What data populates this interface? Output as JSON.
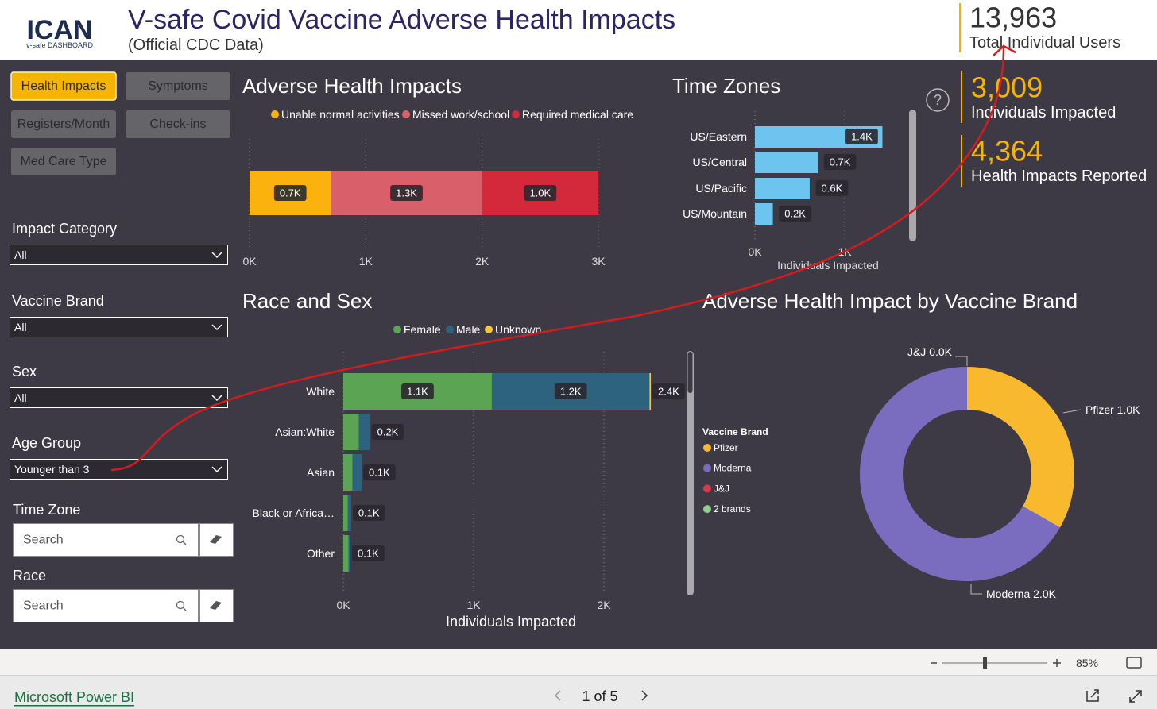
{
  "header": {
    "logo": "ICAN",
    "logo_sub": "v-safe DASHBOARD",
    "title": "V-safe Covid Vaccine Adverse Health Impacts",
    "subtitle": "(Official CDC Data)"
  },
  "kpis": [
    {
      "value": "13,963",
      "label": "Total Individual Users"
    },
    {
      "value": "3,009",
      "label": "Individuals Impacted"
    },
    {
      "value": "4,364",
      "label": "Health Impacts Reported"
    }
  ],
  "nav_buttons": [
    "Health Impacts",
    "Symptoms",
    "Registers/Month",
    "Check-ins",
    "Med Care Type"
  ],
  "filters": [
    {
      "label": "Impact Category",
      "value": "All"
    },
    {
      "label": "Vaccine Brand",
      "value": "All"
    },
    {
      "label": "Sex",
      "value": "All"
    },
    {
      "label": "Age Group",
      "value": "Younger than 3"
    }
  ],
  "searches": [
    {
      "label": "Time Zone",
      "placeholder": "Search"
    },
    {
      "label": "Race",
      "placeholder": "Search"
    }
  ],
  "help": "?",
  "chart_data": [
    {
      "type": "bar",
      "title": "Adverse Health Impacts",
      "categories": [
        null
      ],
      "series": [
        {
          "name": "Unable normal activities",
          "color": "#fbb20f",
          "values": [
            0.7
          ],
          "value_labels": [
            "0.7K"
          ]
        },
        {
          "name": "Missed work/school",
          "color": "#d9606b",
          "values": [
            1.3
          ],
          "value_labels": [
            "1.3K"
          ]
        },
        {
          "name": "Required medical care",
          "color": "#d3293b",
          "values": [
            1.0
          ],
          "value_labels": [
            "1.0K"
          ]
        }
      ],
      "xlim": [
        0,
        3
      ],
      "xticks": [
        {
          "value": 0,
          "label": "0K"
        },
        {
          "value": 1,
          "label": "1K"
        },
        {
          "value": 2,
          "label": "2K"
        },
        {
          "value": 3,
          "label": "3K"
        }
      ],
      "grid": true
    },
    {
      "type": "bar",
      "title": "Time Zones",
      "categories": [
        "US/Eastern",
        "US/Central",
        "US/Pacific",
        "US/Mountain"
      ],
      "values": [
        1.42,
        0.7,
        0.61,
        0.2
      ],
      "value_labels": [
        "1.4K",
        "0.7K",
        "0.6K",
        "0.2K"
      ],
      "color": "#6cc4ef",
      "xlim": [
        0,
        1.5
      ],
      "xticks": [
        {
          "value": 0,
          "label": "0K"
        },
        {
          "value": 1,
          "label": "1K"
        }
      ],
      "xlabel": "Individuals Impacted",
      "grid": true
    },
    {
      "type": "bar",
      "title": "Race and Sex",
      "categories": [
        "White",
        "Asian:White",
        "Asian",
        "Black or Africa…",
        "Other"
      ],
      "series": [
        {
          "name": "Female",
          "color": "#5aa454",
          "values": [
            1.14,
            0.12,
            0.07,
            0.035,
            0.04
          ],
          "value_labels": [
            "1.1K",
            null,
            null,
            null,
            null
          ]
        },
        {
          "name": "Male",
          "color": "#2e6380",
          "values": [
            1.21,
            0.085,
            0.07,
            0.025,
            0.015
          ],
          "value_labels": [
            "1.2K",
            null,
            null,
            null,
            null
          ]
        },
        {
          "name": "Unknown",
          "color": "#f5c542",
          "values": [
            0.01,
            0,
            0,
            0,
            0
          ],
          "value_labels": [
            null,
            null,
            null,
            null,
            null
          ]
        }
      ],
      "totals": [
        2.36,
        0.205,
        0.14,
        0.06,
        0.055
      ],
      "total_labels": [
        "2.4K",
        "0.2K",
        "0.1K",
        "0.1K",
        "0.1K"
      ],
      "xlim": [
        0,
        2.6
      ],
      "xticks": [
        {
          "value": 0,
          "label": "0K"
        },
        {
          "value": 1,
          "label": "1K"
        },
        {
          "value": 2,
          "label": "2K"
        }
      ],
      "xlabel": "Individuals Impacted",
      "grid": true
    },
    {
      "type": "pie",
      "title": "Adverse Health Impact by Vaccine Brand",
      "legend_title": "Vaccine Brand",
      "categories": [
        "Pfizer",
        "Moderna",
        "J&J",
        "2 brands"
      ],
      "values": [
        1.0,
        2.0,
        0.0,
        null
      ],
      "value_labels": [
        "Pfizer 1.0K",
        "Moderna 2.0K",
        "J&J 0.0K",
        null
      ],
      "colors": [
        "#f9b92f",
        "#7a6dbf",
        "#d9394a",
        "#8fce8c"
      ],
      "donut": true
    }
  ],
  "footer": {
    "zoom": "85%",
    "brand": "Microsoft Power BI",
    "page": "1 of 5"
  }
}
